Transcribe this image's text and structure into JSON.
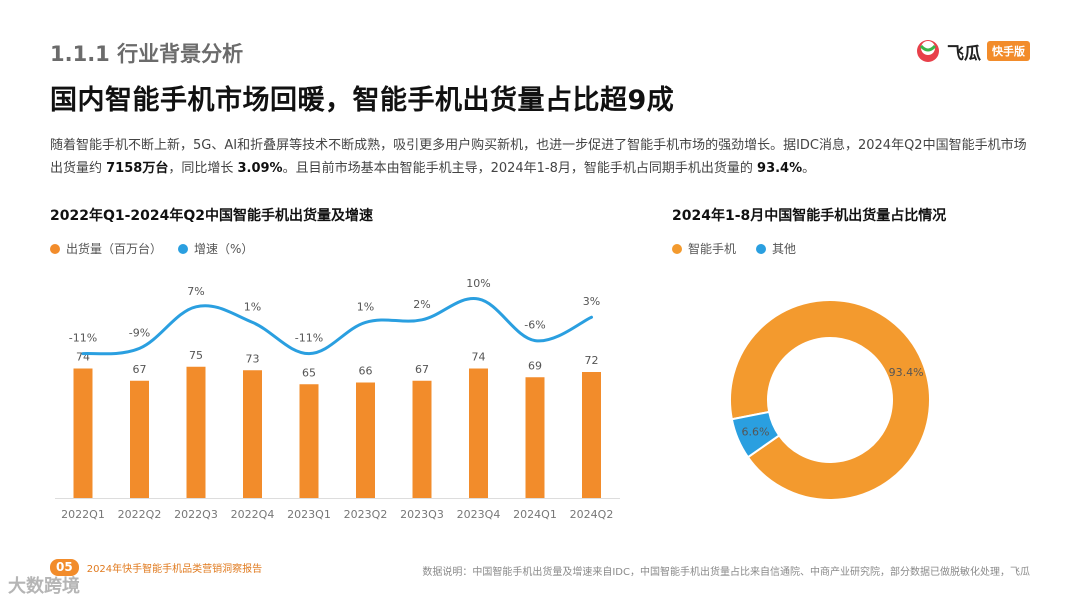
{
  "header": {
    "section": "1.1.1 行业背景分析",
    "headline": "国内智能手机市场回暖，智能手机出货量占比超9成",
    "intro_parts": [
      "随着智能手机不断上新，5G、AI和折叠屏等技术不断成熟，吸引更多用户购买新机，也进一步促进了智能手机市场的强劲增长。据IDC消息，2024年Q2中国智能手机市场出货量约 ",
      "7158万台",
      "，同比增长 ",
      "3.09%",
      "。且目前市场基本由智能手机主导，2024年1-8月，智能手机占同期手机出货量的 ",
      "93.4%",
      "。"
    ]
  },
  "logo": {
    "name": "飞瓜",
    "badge": "快手版"
  },
  "colors": {
    "orange": "#f28c2b",
    "blue": "#2a9fe0",
    "donut_other": "#2a9fe0",
    "donut_main": "#f39a2e"
  },
  "chart_data": [
    {
      "type": "bar",
      "title": "2022年Q1-2024年Q2中国智能手机出货量及增速",
      "legend": [
        "出货量（百万台）",
        "增速（%）"
      ],
      "categories": [
        "2022Q1",
        "2022Q2",
        "2022Q3",
        "2022Q4",
        "2023Q1",
        "2023Q2",
        "2023Q3",
        "2023Q4",
        "2024Q1",
        "2024Q2"
      ],
      "series": [
        {
          "name": "出货量（百万台）",
          "type": "bar",
          "values": [
            74,
            67,
            75,
            73,
            65,
            66,
            67,
            74,
            69,
            72
          ]
        },
        {
          "name": "增速（%）",
          "type": "line",
          "values": [
            -11,
            -9,
            7,
            1,
            -11,
            1,
            2,
            10,
            -6,
            3
          ],
          "labels": [
            "-11%",
            "-9%",
            "7%",
            "1%",
            "-11%",
            "1%",
            "2%",
            "10%",
            "-6%",
            "3%"
          ]
        }
      ]
    },
    {
      "type": "pie",
      "title": "2024年1-8月中国智能手机出货量占比情况",
      "legend": [
        "智能手机",
        "其他"
      ],
      "slices": [
        {
          "name": "智能手机",
          "value": 93.4,
          "label": "93.4%"
        },
        {
          "name": "其他",
          "value": 6.6,
          "label": "6.6%"
        }
      ]
    }
  ],
  "footer": {
    "page": "05",
    "report": "2024年快手智能手机品类营销洞察报告",
    "source": "数据说明：中国智能手机出货量及增速来自IDC，中国智能手机出货量占比来自信通院、中商产业研究院，部分数据已做脱敏化处理，飞瓜",
    "watermark": "大数跨境"
  }
}
